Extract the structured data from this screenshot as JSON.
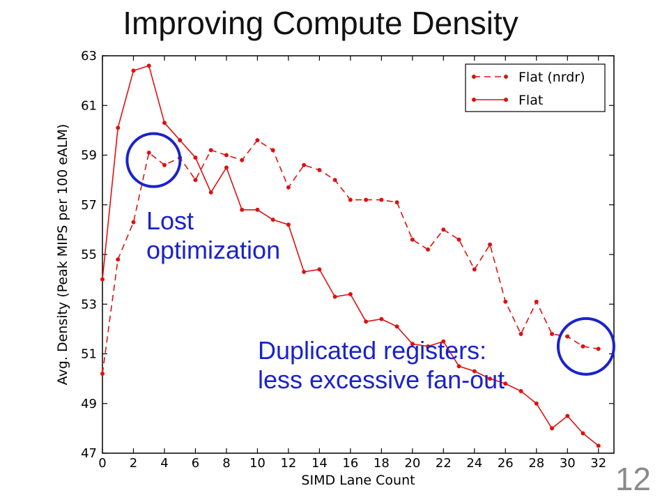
{
  "slide": {
    "title": "Improving Compute Density",
    "page_number": "12"
  },
  "annotations": {
    "lost_line1": "Lost",
    "lost_line2": "optimization",
    "dup_line1": "Duplicated registers:",
    "dup_line2": "less excessive fan-out",
    "circle_color": "#1a22cc"
  },
  "chart_data": {
    "type": "line",
    "xlabel": "SIMD Lane Count",
    "ylabel": "Avg. Density (Peak MIPS per 100 eALM)",
    "xlim": [
      0,
      33
    ],
    "ylim": [
      47,
      63
    ],
    "xticks": [
      0,
      2,
      4,
      6,
      8,
      10,
      12,
      14,
      16,
      18,
      20,
      22,
      24,
      26,
      28,
      30,
      32
    ],
    "yticks": [
      47,
      49,
      51,
      53,
      55,
      57,
      59,
      61,
      63
    ],
    "grid": false,
    "legend_position": "top-right",
    "series": [
      {
        "name": "Flat (nrdr)",
        "style": "dashed",
        "color": "#dd1111",
        "x": [
          0,
          1,
          2,
          3,
          4,
          5,
          6,
          7,
          8,
          9,
          10,
          11,
          12,
          13,
          14,
          15,
          16,
          17,
          18,
          19,
          20,
          21,
          22,
          23,
          24,
          25,
          26,
          27,
          28,
          29,
          30,
          31,
          32
        ],
        "values": [
          50.2,
          54.8,
          56.3,
          59.1,
          58.6,
          58.9,
          58.0,
          59.2,
          59.0,
          58.8,
          59.6,
          59.2,
          57.7,
          58.6,
          58.4,
          58.0,
          57.2,
          57.2,
          57.2,
          57.1,
          55.6,
          55.2,
          56.0,
          55.6,
          54.4,
          55.4,
          53.1,
          51.8,
          53.1,
          51.8,
          51.7,
          51.3,
          51.2
        ]
      },
      {
        "name": "Flat",
        "style": "solid",
        "color": "#dd1111",
        "x": [
          0,
          1,
          2,
          3,
          4,
          5,
          6,
          7,
          8,
          9,
          10,
          11,
          12,
          13,
          14,
          15,
          16,
          17,
          18,
          19,
          20,
          21,
          22,
          23,
          24,
          25,
          26,
          27,
          28,
          29,
          30,
          31,
          32
        ],
        "values": [
          54.0,
          60.1,
          62.4,
          62.6,
          60.3,
          59.6,
          58.9,
          57.5,
          58.5,
          56.8,
          56.8,
          56.4,
          56.2,
          54.3,
          54.4,
          53.3,
          53.4,
          52.3,
          52.4,
          52.1,
          51.4,
          51.3,
          51.5,
          50.5,
          50.3,
          50.0,
          49.8,
          49.5,
          49.0,
          48.0,
          48.5,
          47.8,
          47.3
        ]
      }
    ]
  }
}
